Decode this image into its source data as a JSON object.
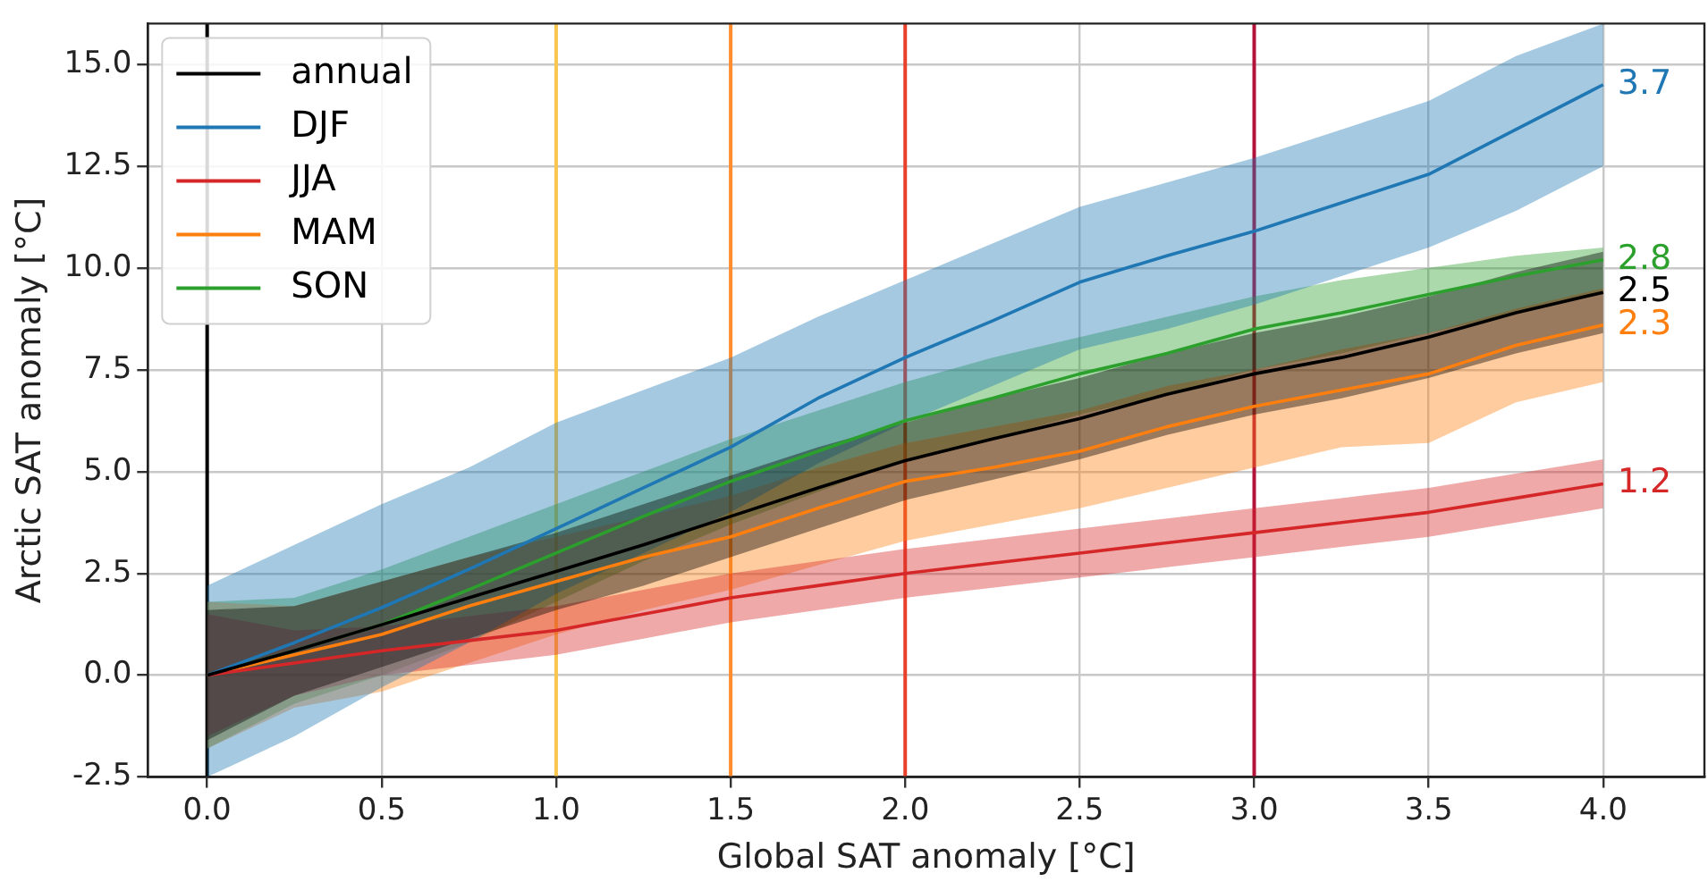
{
  "chart_data": {
    "type": "line",
    "xlabel": "Global SAT anomaly [°C]",
    "ylabel": "Arctic SAT anomaly [°C]",
    "xlim": [
      -0.17,
      4.29
    ],
    "ylim": [
      -2.5,
      16
    ],
    "xticks": [
      {
        "value": 0,
        "label": "0.0"
      },
      0.5,
      {
        "value": 1,
        "label": "1.0"
      },
      1.5,
      {
        "value": 2,
        "label": "2.0"
      },
      2.5,
      {
        "value": 3,
        "label": "3.0"
      },
      3.5,
      {
        "value": 4,
        "label": "4.0"
      }
    ],
    "yticks": [
      -2.5,
      {
        "value": 0,
        "label": "0.0"
      },
      2.5,
      {
        "value": 5,
        "label": "5.0"
      },
      7.5,
      {
        "value": 10,
        "label": "10.0"
      },
      12.5,
      {
        "value": 15,
        "label": "15.0"
      }
    ],
    "x": [
      0,
      0.25,
      0.5,
      0.75,
      1,
      1.25,
      1.5,
      1.75,
      2,
      2.25,
      2.5,
      2.75,
      3,
      3.25,
      3.5,
      3.75,
      4
    ],
    "series": [
      {
        "name": "annual",
        "color": "#000000",
        "values": [
          0,
          0.6,
          1.24,
          1.9,
          2.55,
          3.2,
          3.9,
          4.6,
          5.27,
          5.8,
          6.3,
          6.9,
          7.4,
          7.8,
          8.3,
          8.9,
          9.4
        ],
        "lower": [
          -1.6,
          -0.5,
          0.2,
          0.9,
          1.6,
          2.2,
          2.9,
          3.6,
          4.3,
          4.8,
          5.3,
          5.9,
          6.4,
          6.8,
          7.3,
          7.9,
          8.4
        ],
        "upper": [
          1.6,
          1.7,
          2.3,
          2.9,
          3.5,
          4.2,
          4.9,
          5.6,
          6.2,
          6.8,
          7.3,
          7.9,
          8.4,
          8.8,
          9.3,
          9.9,
          10.4
        ]
      },
      {
        "name": "DJF",
        "color": "#1f77b4",
        "values": [
          0,
          0.8,
          1.66,
          2.6,
          3.6,
          4.6,
          5.6,
          6.8,
          7.8,
          8.7,
          9.65,
          10.3,
          10.9,
          11.6,
          12.3,
          13.4,
          14.5
        ],
        "lower": [
          -2.5,
          -1.5,
          -0.3,
          0.8,
          2,
          3,
          4,
          5.2,
          6.2,
          7.1,
          8,
          8.5,
          9.1,
          9.8,
          10.5,
          11.4,
          12.5
        ],
        "upper": [
          2.2,
          3.2,
          4.2,
          5.1,
          6.2,
          7,
          7.8,
          8.8,
          9.7,
          10.6,
          11.5,
          12.1,
          12.7,
          13.4,
          14.1,
          15.2,
          16
        ]
      },
      {
        "name": "JJA",
        "color": "#d62728",
        "values": [
          0,
          0.3,
          0.6,
          0.85,
          1.1,
          1.5,
          1.9,
          2.2,
          2.5,
          2.75,
          3,
          3.25,
          3.5,
          3.75,
          4,
          4.35,
          4.7
        ],
        "lower": [
          -1.5,
          -0.5,
          0,
          0.25,
          0.5,
          0.9,
          1.3,
          1.6,
          1.9,
          2.15,
          2.4,
          2.65,
          2.9,
          3.15,
          3.4,
          3.75,
          4.1
        ],
        "upper": [
          1.5,
          1.1,
          1.2,
          1.45,
          1.7,
          2.1,
          2.5,
          2.8,
          3.1,
          3.35,
          3.6,
          3.85,
          4.1,
          4.35,
          4.6,
          4.95,
          5.3
        ]
      },
      {
        "name": "MAM",
        "color": "#ff7f0e",
        "values": [
          0,
          0.5,
          1,
          1.7,
          2.3,
          2.9,
          3.4,
          4.1,
          4.76,
          5.1,
          5.5,
          6.1,
          6.6,
          7,
          7.4,
          8.1,
          8.6
        ],
        "lower": [
          -1.8,
          -0.8,
          -0.4,
          0.3,
          1,
          1.6,
          2.1,
          2.7,
          3.3,
          3.7,
          4.1,
          4.6,
          5.1,
          5.6,
          5.7,
          6.7,
          7.2
        ],
        "upper": [
          1.8,
          1.7,
          2.3,
          2.9,
          3.4,
          3.9,
          4.4,
          5.1,
          5.7,
          6.1,
          6.5,
          7.1,
          7.5,
          8,
          8.4,
          9,
          9.5
        ]
      },
      {
        "name": "SON",
        "color": "#2ca02c",
        "values": [
          0,
          0.6,
          1.24,
          2.1,
          3,
          3.9,
          4.76,
          5.5,
          6.25,
          6.8,
          7.4,
          7.9,
          8.5,
          8.9,
          9.35,
          9.8,
          10.2
        ],
        "lower": [
          -1.8,
          -0.7,
          0,
          0.8,
          1.8,
          2.8,
          3.7,
          4.5,
          5.3,
          5.8,
          6.4,
          6.9,
          7.5,
          7.9,
          8.4,
          8.9,
          9.4
        ],
        "upper": [
          1.8,
          1.9,
          2.6,
          3.4,
          4.2,
          5,
          5.8,
          6.5,
          7.2,
          7.8,
          8.3,
          8.8,
          9.3,
          9.7,
          10,
          10.3,
          10.5
        ]
      }
    ],
    "ref_lines": [
      {
        "axis": "x",
        "value": 0,
        "color": "#000000"
      },
      {
        "axis": "x",
        "value": 1,
        "color": "#f9c74f"
      },
      {
        "axis": "x",
        "value": 1.5,
        "color": "#ff8c2e"
      },
      {
        "axis": "x",
        "value": 2,
        "color": "#e8402a"
      },
      {
        "axis": "x",
        "value": 3,
        "color": "#b3123a"
      }
    ],
    "annotations": [
      "2.5",
      "3.7",
      "1.2",
      "2.3",
      "2.8"
    ],
    "grid": true,
    "legend": "top left",
    "marker": "none",
    "line_style": "solid"
  }
}
